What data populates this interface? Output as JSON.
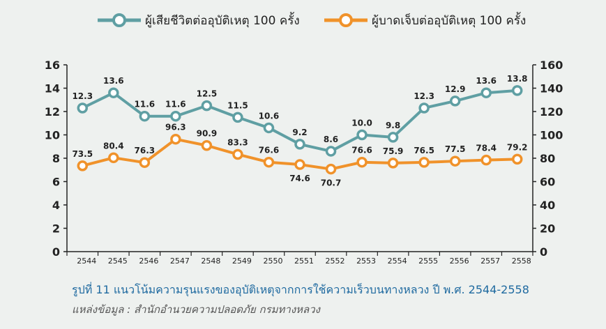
{
  "chart_data": {
    "type": "line",
    "categories": [
      "2544",
      "2545",
      "2546",
      "2547",
      "2548",
      "2549",
      "2550",
      "2551",
      "2552",
      "2553",
      "2554",
      "2555",
      "2556",
      "2557",
      "2558"
    ],
    "series": [
      {
        "name": "ผู้เสียชีวิตต่ออุบัติเหตุ 100 ครั้ง",
        "axis": "left",
        "color": "#5f9fa3",
        "values": [
          12.3,
          13.6,
          11.6,
          11.6,
          12.5,
          11.5,
          10.6,
          9.2,
          8.6,
          10.0,
          9.8,
          12.3,
          12.9,
          13.6,
          13.8
        ],
        "labels": [
          "12.3",
          "13.6",
          "11.6",
          "11.6",
          "12.5",
          "11.5",
          "10.6",
          "9.2",
          "8.6",
          "10.0",
          "9.8",
          "12.3",
          "12.9",
          "13.6",
          "13.8"
        ]
      },
      {
        "name": "ผู้บาดเจ็บต่ออุบัติเหตุ 100 ครั้ง",
        "axis": "right",
        "color": "#f0922a",
        "values": [
          73.5,
          80.4,
          76.3,
          96.3,
          90.9,
          83.3,
          76.6,
          74.6,
          70.7,
          76.6,
          75.9,
          76.5,
          77.5,
          78.4,
          79.2
        ],
        "labels": [
          "73.5",
          "80.4",
          "76.3",
          "96.3",
          "90.9",
          "83.3",
          "76.6",
          "74.6",
          "70.7",
          "76.6",
          "75.9",
          "76.5",
          "77.5",
          "78.4",
          "79.2"
        ]
      }
    ],
    "y_left": {
      "range": [
        0,
        16
      ],
      "ticks": [
        "0",
        "2",
        "4",
        "6",
        "8",
        "10",
        "12",
        "14",
        "16"
      ]
    },
    "y_right": {
      "range": [
        0,
        160
      ],
      "ticks": [
        "0",
        "20",
        "40",
        "60",
        "80",
        "100",
        "120",
        "140",
        "160"
      ]
    },
    "grid": false,
    "legend_position": "top"
  },
  "caption": "รูปที่ 11 แนวโน้มความรุนแรงของอุบัติเหตุจากการใช้ความเร็วบนทางหลวง ปี พ.ศ. 2544-2558",
  "source": "แหล่งข้อมูล : สำนักอำนวยความปลอดภัย กรมทางหลวง"
}
